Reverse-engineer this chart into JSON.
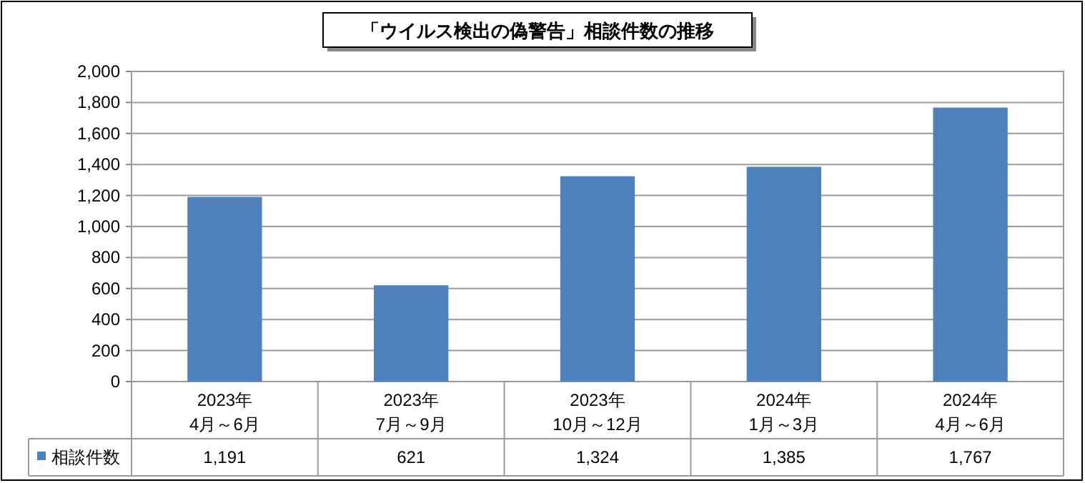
{
  "chart_data": {
    "type": "bar",
    "title": "「ウイルス検出の偽警告」相談件数の推移",
    "categories": [
      "2023年\n4月～6月",
      "2023年\n7月～9月",
      "2023年\n10月～12月",
      "2024年\n1月～3月",
      "2024年\n4月～6月"
    ],
    "series": [
      {
        "name": "相談件数",
        "color": "#4f81bd",
        "values": [
          1191,
          621,
          1324,
          1385,
          1767
        ],
        "value_labels": [
          "1,191",
          "621",
          "1,324",
          "1,385",
          "1,767"
        ]
      }
    ],
    "ylim": [
      0,
      2000
    ],
    "yticks": [
      0,
      200,
      400,
      600,
      800,
      {
        "value": 1000,
        "label": "1,000"
      },
      {
        "value": 1200,
        "label": "1,200"
      },
      {
        "value": 1400,
        "label": "1,400"
      },
      {
        "value": 1600,
        "label": "1,600"
      },
      {
        "value": 1800,
        "label": "1,800"
      },
      {
        "value": 2000,
        "label": "2,000"
      }
    ],
    "grid": "y",
    "legend": "bottom left"
  }
}
